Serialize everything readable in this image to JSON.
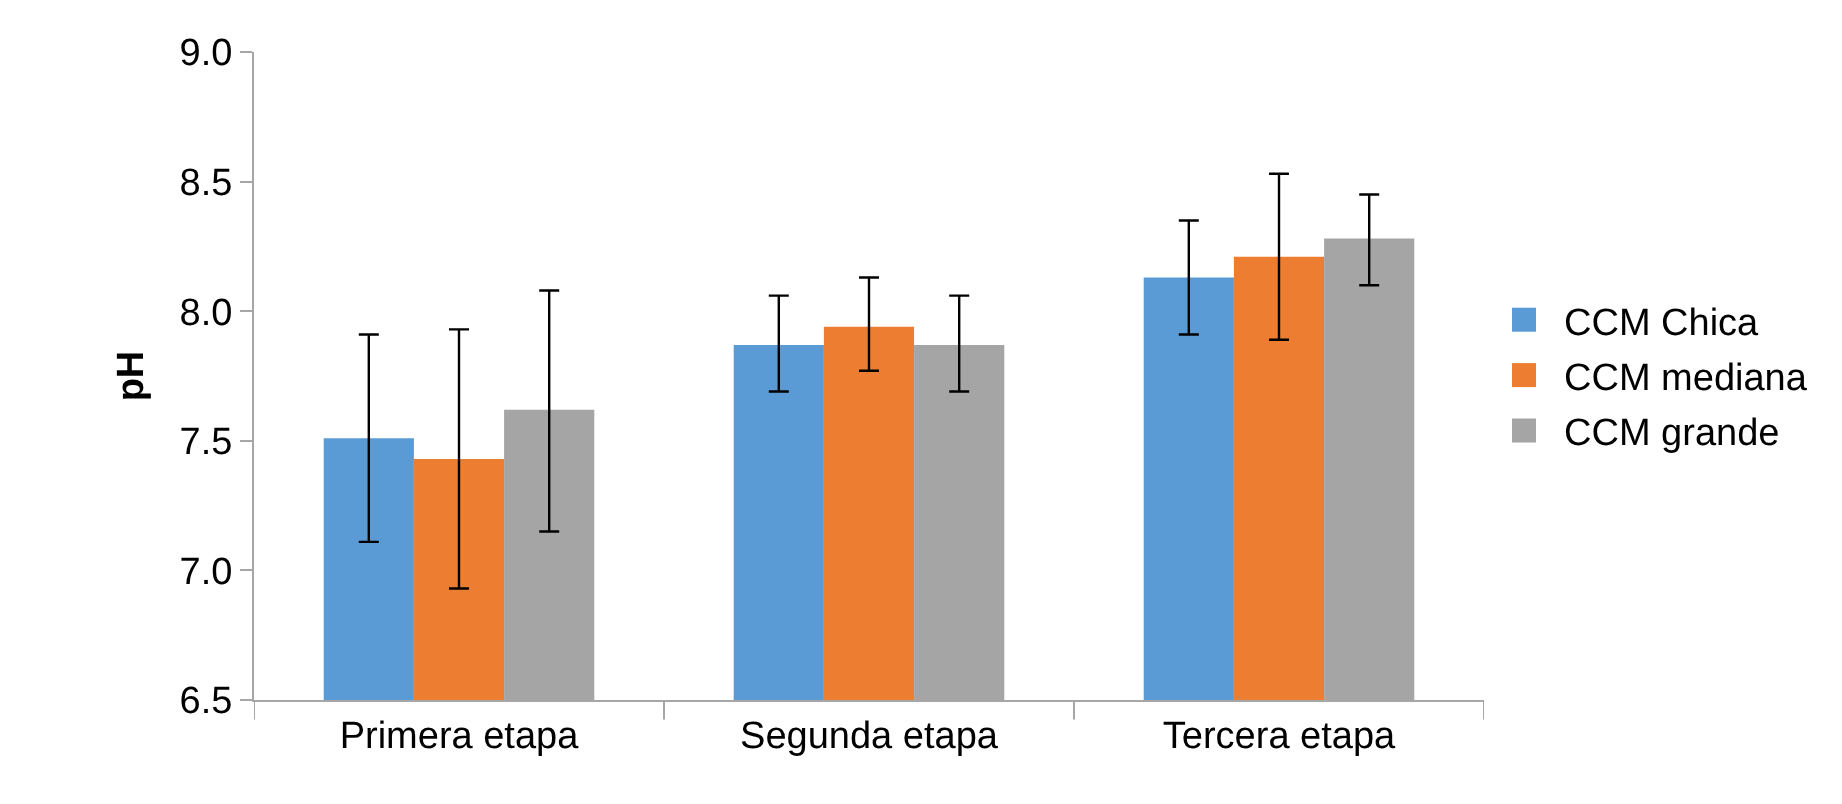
{
  "chart_data": {
    "type": "bar",
    "ylabel": "pH",
    "categories": [
      "Primera etapa",
      "Segunda etapa",
      "Tercera etapa"
    ],
    "ylim": [
      6.5,
      9.0
    ],
    "yticks": [
      {
        "value": 6.5,
        "label": "6.5"
      },
      {
        "value": 7.0,
        "label": "7.0"
      },
      {
        "value": 7.5,
        "label": "7.5"
      },
      {
        "value": 8.0,
        "label": "8.0"
      },
      {
        "value": 8.5,
        "label": "8.5"
      },
      {
        "value": 9.0,
        "label": "9.0"
      }
    ],
    "grid": false,
    "legend": "right",
    "series": [
      {
        "name": "CCM Chica",
        "color": "#5b9bd5",
        "values": [
          7.51,
          7.87,
          8.13
        ],
        "errors": [
          [
            7.11,
            7.91
          ],
          [
            7.69,
            8.06
          ],
          [
            7.91,
            8.35
          ]
        ]
      },
      {
        "name": "CCM mediana",
        "color": "#ed7d31",
        "values": [
          7.43,
          7.94,
          8.21
        ],
        "errors": [
          [
            6.93,
            7.93
          ],
          [
            7.77,
            8.13
          ],
          [
            7.89,
            8.53
          ]
        ]
      },
      {
        "name": "CCM grande",
        "color": "#a5a5a5",
        "values": [
          7.62,
          7.87,
          8.28
        ],
        "errors": [
          [
            7.15,
            8.08
          ],
          [
            7.69,
            8.06
          ],
          [
            8.1,
            8.45
          ]
        ]
      }
    ]
  }
}
